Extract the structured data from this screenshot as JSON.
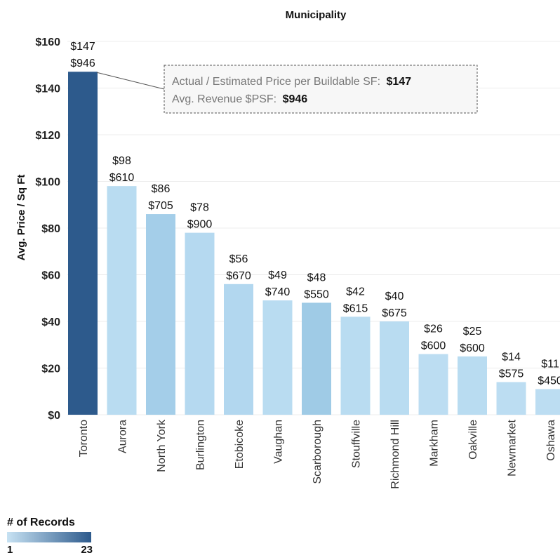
{
  "chart_data": {
    "type": "bar",
    "title": "Municipality",
    "ylabel": "Avg. Price / Sq Ft",
    "ylim": [
      0,
      160
    ],
    "yticks": [
      "$0",
      "$20",
      "$40",
      "$60",
      "$80",
      "$100",
      "$120",
      "$140",
      "$160"
    ],
    "ytick_values": [
      0,
      20,
      40,
      60,
      80,
      100,
      120,
      140,
      160
    ],
    "categories": [
      "Toronto",
      "Aurora",
      "North York",
      "Burlington",
      "Etobicoke",
      "Vaughan",
      "Scarborough",
      "Stouffville",
      "Richmond Hill",
      "Markham",
      "Oakville",
      "Newmarket",
      "Oshawa"
    ],
    "values": [
      147,
      98,
      86,
      78,
      56,
      49,
      48,
      42,
      40,
      26,
      25,
      14,
      11
    ],
    "price_labels": [
      "$147",
      "$98",
      "$86",
      "$78",
      "$56",
      "$49",
      "$48",
      "$42",
      "$40",
      "$26",
      "$25",
      "$14",
      "$11"
    ],
    "revenue_labels": [
      "$946",
      "$610",
      "$705",
      "$900",
      "$670",
      "$740",
      "$550",
      "$615",
      "$675",
      "$600",
      "$600",
      "$575",
      "$450"
    ],
    "colors": [
      "#2d5a8c",
      "#b9dcf1",
      "#a4cee9",
      "#b5d9f0",
      "#b2d7ef",
      "#b9dcf1",
      "#9fcbe6",
      "#b9dcf1",
      "#b9dcf1",
      "#bcddf2",
      "#b9dcf1",
      "#bcddf2",
      "#bcddf2"
    ],
    "grid": true,
    "legend": {
      "title": "# of Records",
      "min": "1",
      "max": "23",
      "color_min": "#c7e2f3",
      "color_max": "#2d5a8c"
    }
  },
  "tooltip": {
    "line1_label": "Actual / Estimated Price per Buildable SF:",
    "line1_value": "$147",
    "line2_label": "Avg. Revenue $PSF:",
    "line2_value": "$946"
  }
}
